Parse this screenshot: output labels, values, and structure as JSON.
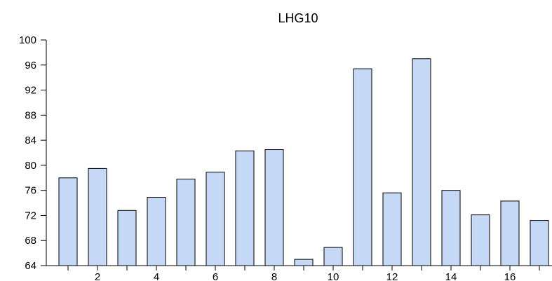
{
  "chart_data": {
    "type": "bar",
    "title": "LHG10",
    "xlabel": "",
    "ylabel": "",
    "categories": [
      1,
      2,
      3,
      4,
      5,
      6,
      7,
      8,
      9,
      10,
      11,
      12,
      13,
      14,
      15,
      16,
      17
    ],
    "values": [
      78.0,
      79.5,
      72.8,
      74.9,
      77.8,
      78.9,
      82.3,
      82.5,
      65.0,
      66.9,
      95.4,
      75.6,
      97.0,
      76.0,
      72.1,
      74.3,
      71.2
    ],
    "ylim": [
      64,
      100
    ],
    "yticks": [
      64,
      68,
      72,
      76,
      80,
      84,
      88,
      92,
      96,
      100
    ],
    "xtick_labels": [
      2,
      4,
      6,
      8,
      10,
      12,
      14,
      16
    ],
    "grid": false,
    "colors": {
      "bar_fill": "#c5d9f7",
      "bar_stroke": "#000000",
      "axis": "#000000",
      "background": "#ffffff"
    }
  }
}
